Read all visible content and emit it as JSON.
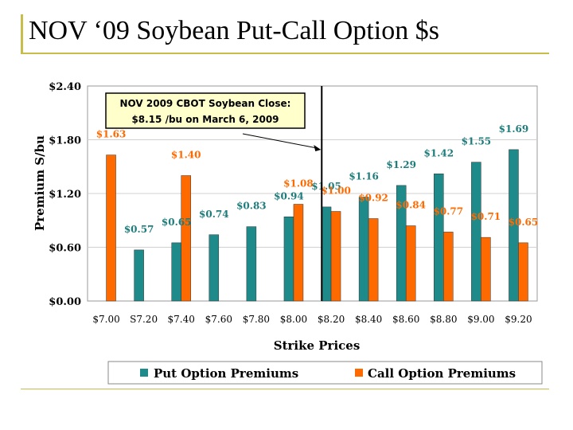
{
  "slide": {
    "title": "NOV ‘09 Soybean Put-Call Option $s"
  },
  "chart_data": {
    "type": "bar",
    "xlabel": "Strike Prices",
    "ylabel": "Premium S/bu",
    "ylim": [
      0,
      2.4
    ],
    "yticks": [
      "$0.00",
      "$0.60",
      "$1.20",
      "$1.80",
      "$2.40"
    ],
    "ytick_values": [
      0,
      0.6,
      1.2,
      1.8,
      2.4
    ],
    "categories": [
      "$7.00",
      "S7.20",
      "$7.40",
      "$7.60",
      "$7.80",
      "$8.00",
      "$8.20",
      "$8.40",
      "$8.60",
      "$8.80",
      "$9.00",
      "$9.20"
    ],
    "series": [
      {
        "name": "Put Option Premiums",
        "color": "#1f8a8a",
        "values": [
          null,
          0.57,
          0.65,
          0.74,
          0.83,
          0.94,
          1.05,
          1.16,
          1.29,
          1.42,
          1.55,
          1.69
        ],
        "labels": [
          "",
          "$0.57",
          "$0.65",
          "$0.74",
          "$0.83",
          "$0.94",
          "$1.05",
          "$1.16",
          "$1.29",
          "$1.42",
          "$1.55",
          "$1.69"
        ]
      },
      {
        "name": "Call Option Premiums",
        "color": "#ff6a00",
        "values": [
          1.63,
          null,
          1.4,
          null,
          null,
          1.08,
          1.0,
          0.92,
          0.84,
          0.77,
          0.71,
          0.65
        ],
        "labels": [
          "$1.63",
          "",
          "$1.40",
          "",
          "",
          "$1.08",
          "$1.00",
          "$0.92",
          "$0.84",
          "$0.77",
          "$0.71",
          "$0.65"
        ]
      }
    ],
    "annotation": {
      "line1": "NOV 2009 CBOT Soybean Close:",
      "line2": "$8.15 /bu on March 6, 2009",
      "marker_x": 8.15
    },
    "legend": "bottom"
  }
}
